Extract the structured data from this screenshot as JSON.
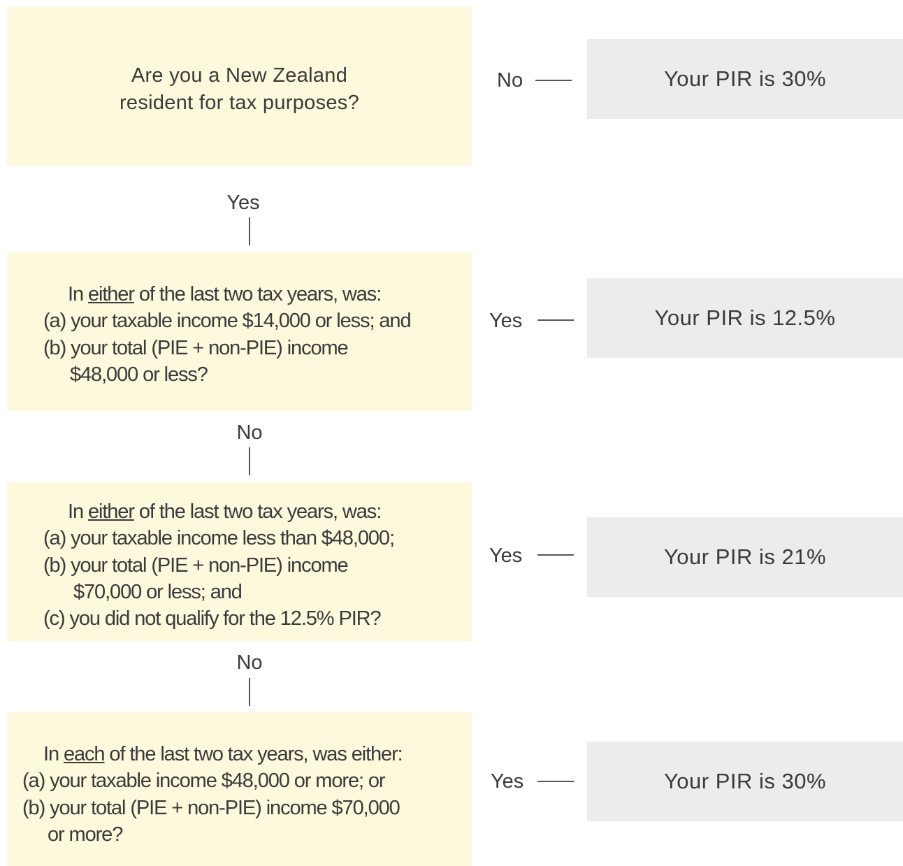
{
  "nodes": [
    {
      "lines": [
        [
          {
            "text": "Are you a New Zealand"
          }
        ],
        [
          {
            "text": "resident for tax purposes?"
          }
        ]
      ]
    },
    {
      "lines": [
        [
          {
            "text": "In "
          },
          {
            "text": "either",
            "underline": true
          },
          {
            "text": " of the last two tax years, was:"
          }
        ],
        [
          {
            "text": "(a) your taxable income $14,000 or less; and"
          }
        ],
        [
          {
            "text": "(b) your total (PIE + non-PIE) income"
          }
        ],
        [
          {
            "text": "$48,000 or less?"
          }
        ]
      ]
    },
    {
      "lines": [
        [
          {
            "text": "In "
          },
          {
            "text": "either",
            "underline": true
          },
          {
            "text": " of the last two tax years, was:"
          }
        ],
        [
          {
            "text": "(a) your taxable income less than $48,000;"
          }
        ],
        [
          {
            "text": "(b) your total (PIE + non-PIE) income"
          }
        ],
        [
          {
            "text": "$70,000 or less; and"
          }
        ],
        [
          {
            "text": "(c) you did not qualify for the 12.5% PIR?"
          }
        ]
      ]
    },
    {
      "lines": [
        [
          {
            "text": "In "
          },
          {
            "text": "each",
            "underline": true
          },
          {
            "text": " of the last two tax years, was either:"
          }
        ],
        [
          {
            "text": "(a) your taxable income $48,000 or more; or"
          }
        ],
        [
          {
            "text": "(b) your total (PIE + non-PIE) income $70,000"
          }
        ],
        [
          {
            "text": "or more?"
          }
        ]
      ]
    }
  ],
  "connectors": [
    "Yes",
    "No",
    "No"
  ],
  "results": [
    {
      "answer": "No",
      "text": "Your PIR is 30%"
    },
    {
      "answer": "Yes",
      "text": "Your PIR is 12.5%"
    },
    {
      "answer": "Yes",
      "text": "Your PIR is 21%"
    },
    {
      "answer": "Yes",
      "text": "Your PIR is 30%"
    }
  ]
}
